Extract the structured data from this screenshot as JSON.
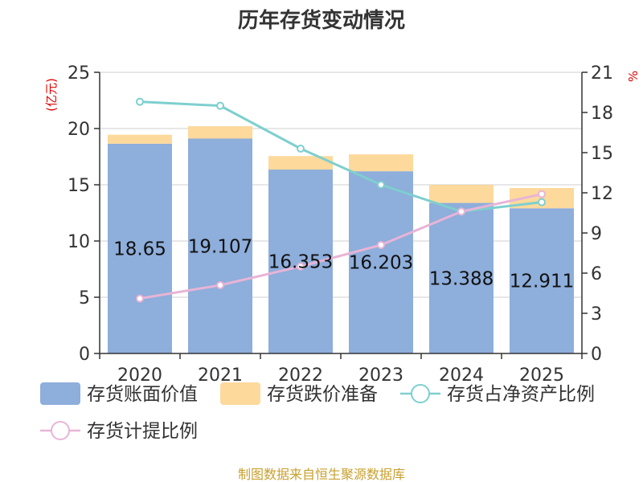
{
  "chart_data": {
    "type": "bar",
    "title": "历年存货变动情况",
    "source": "制图数据来自恒生聚源数据库",
    "categories": [
      "2020",
      "2021",
      "2022",
      "2023",
      "2024",
      "2025"
    ],
    "left_unit": "(亿元)",
    "right_unit": "%",
    "left_axis": {
      "min": 0,
      "max": 25,
      "ticks": [
        0,
        5,
        10,
        15,
        20,
        25
      ]
    },
    "right_axis": {
      "min": 0,
      "max": 21,
      "ticks": [
        0,
        3,
        6,
        9,
        12,
        15,
        18,
        21
      ]
    },
    "grid": true,
    "legend_position": "bottom",
    "series": [
      {
        "name": "存货账面价值",
        "type": "bar",
        "stack": "inv",
        "axis": "left",
        "color": "#8eaedb",
        "values": [
          18.65,
          19.107,
          16.353,
          16.203,
          13.388,
          12.911
        ],
        "labels": [
          "18.65",
          "19.107",
          "16.353",
          "16.203",
          "13.388",
          "12.911"
        ]
      },
      {
        "name": "存货跌价准备",
        "type": "bar",
        "stack": "inv",
        "axis": "left",
        "color": "#fdd99b",
        "values": [
          0.8,
          1.1,
          1.2,
          1.5,
          1.6,
          1.8
        ]
      },
      {
        "name": "存货占净资产比例",
        "type": "line",
        "axis": "right",
        "color": "#7ecfcf",
        "values": [
          18.8,
          18.5,
          15.3,
          12.6,
          10.6,
          11.3
        ]
      },
      {
        "name": "存货计提比例",
        "type": "line",
        "axis": "right",
        "color": "#e8b4d6",
        "values": [
          4.1,
          5.1,
          6.5,
          8.1,
          10.6,
          11.9
        ]
      }
    ]
  }
}
